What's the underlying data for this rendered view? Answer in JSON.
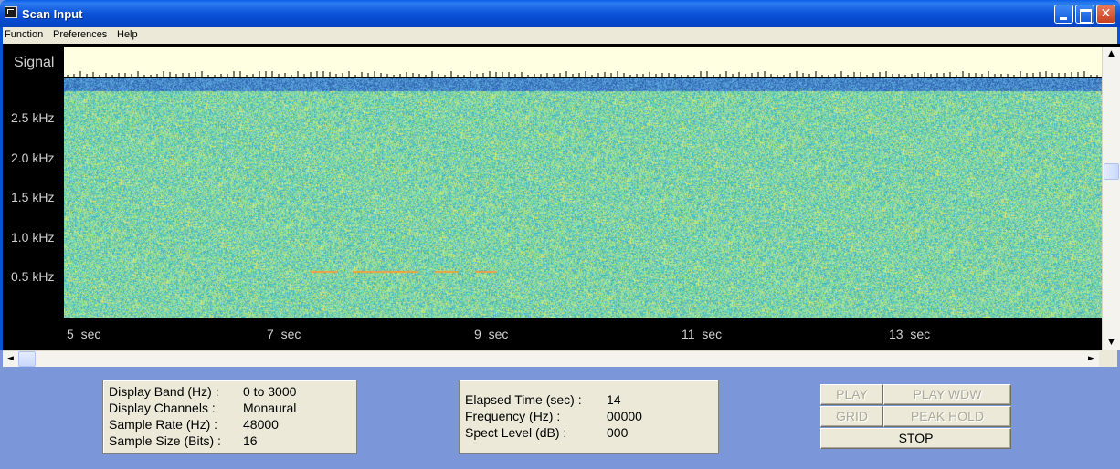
{
  "window": {
    "title": "Scan Input",
    "close_glyph": "✕"
  },
  "menu": {
    "items": [
      "Function",
      "Preferences",
      "Help"
    ]
  },
  "display": {
    "signal_label": "Signal",
    "freq_labels": [
      "2.5 kHz",
      "2.0 kHz",
      "1.5 kHz",
      "1.0 kHz",
      "0.5 kHz"
    ],
    "time_labels": [
      "5  sec",
      "7  sec",
      "9  sec",
      "11  sec",
      "13  sec"
    ],
    "colors": {
      "background": "#000000",
      "signal_strip": "#ffffe1",
      "spectrogram_base": "#7fd6a8",
      "spectrogram_noise_band": "#2e6fc4",
      "tone": "#f0a040"
    }
  },
  "scroll": {
    "up_glyph": "▲",
    "down_glyph": "▼",
    "left_glyph": "◄",
    "right_glyph": "►"
  },
  "info": {
    "display_band_label": "Display Band (Hz) :",
    "display_band_value": "0 to 3000",
    "display_channels_label": "Display Channels :",
    "display_channels_value": "Monaural",
    "sample_rate_label": "Sample Rate (Hz) :",
    "sample_rate_value": "48000",
    "sample_size_label": "Sample Size (Bits) :",
    "sample_size_value": "16"
  },
  "status": {
    "elapsed_label": "Elapsed Time (sec) :",
    "elapsed_value": "14",
    "frequency_label": "Frequency (Hz) :",
    "frequency_value": "00000",
    "level_label": "Spect Level (dB) :",
    "level_value": "000"
  },
  "buttons": {
    "play": "PLAY",
    "play_wdw": "PLAY WDW",
    "grid": "GRID",
    "peak_hold": "PEAK HOLD",
    "stop": "STOP"
  }
}
